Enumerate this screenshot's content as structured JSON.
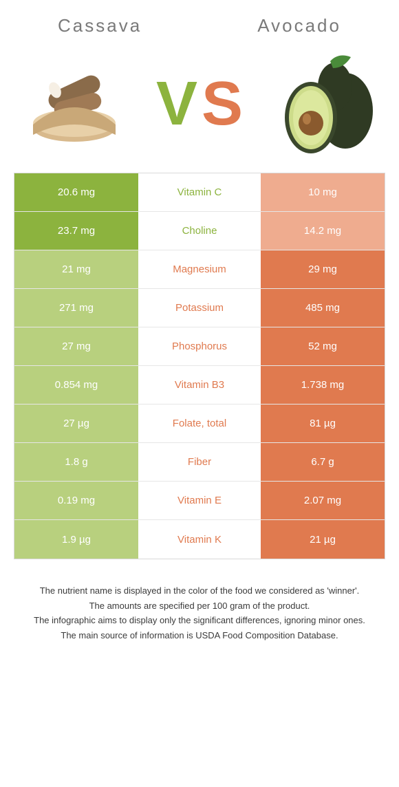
{
  "titles": {
    "left": "Cassava",
    "right": "Avocado"
  },
  "vs": {
    "v": "V",
    "s": "S"
  },
  "colors": {
    "green_win": "#8cb33e",
    "green_lose": "#b8d07e",
    "orange_win": "#e07a4f",
    "orange_lose": "#efac8f",
    "mid_green_text": "#8cb33e",
    "mid_orange_text": "#e07a4f",
    "border": "#d9d9d9"
  },
  "rows": [
    {
      "nutrient": "Vitamin C",
      "left": "20.6 mg",
      "right": "10 mg",
      "winner": "left"
    },
    {
      "nutrient": "Choline",
      "left": "23.7 mg",
      "right": "14.2 mg",
      "winner": "left"
    },
    {
      "nutrient": "Magnesium",
      "left": "21 mg",
      "right": "29 mg",
      "winner": "right"
    },
    {
      "nutrient": "Potassium",
      "left": "271 mg",
      "right": "485 mg",
      "winner": "right"
    },
    {
      "nutrient": "Phosphorus",
      "left": "27 mg",
      "right": "52 mg",
      "winner": "right"
    },
    {
      "nutrient": "Vitamin B3",
      "left": "0.854 mg",
      "right": "1.738 mg",
      "winner": "right"
    },
    {
      "nutrient": "Folate, total",
      "left": "27 µg",
      "right": "81 µg",
      "winner": "right"
    },
    {
      "nutrient": "Fiber",
      "left": "1.8 g",
      "right": "6.7 g",
      "winner": "right"
    },
    {
      "nutrient": "Vitamin E",
      "left": "0.19 mg",
      "right": "2.07 mg",
      "winner": "right"
    },
    {
      "nutrient": "Vitamin K",
      "left": "1.9 µg",
      "right": "21 µg",
      "winner": "right"
    }
  ],
  "footer": {
    "l1": "The nutrient name is displayed in the color of the food we considered as 'winner'.",
    "l2": "The amounts are specified per 100 gram of the product.",
    "l3": "The infographic aims to display only the significant differences, ignoring minor ones.",
    "l4": "The main source of information is USDA Food Composition Database."
  }
}
